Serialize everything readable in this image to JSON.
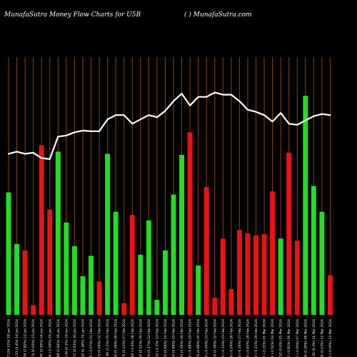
{
  "header": {
    "left_title": "MunafaSutra  Money Flow  Charts for U5B",
    "right_title": "( ) MunafaSutra.com"
  },
  "colors": {
    "background": "#000000",
    "gridline": "#8B4513",
    "up_bar": "#22dd22",
    "down_bar": "#ee1111",
    "price_line": "#ffffff"
  },
  "chart_data": {
    "type": "bar",
    "title": "MunafaSutra  Money Flow  Charts for U5B",
    "xlabel": "",
    "ylabel": "",
    "grid": true,
    "categories": [
      "225.67 (24.11%) 18 Jan 2024",
      "226.53 (3.4%) 19 Jan 2024",
      "225.09 (2.82%) 22 Jan 2024",
      "225.74 (0.92%) 23 Jan 2024",
      "224.40 (2.95%) 24 Jan 2024",
      "224.06 (-0.09%) 25 Jan 2024",
      "227.88 (1.84%) 26 Jan 2024",
      "228.34 (0.2%) 29 Jan 2024",
      "229.72 (0.61%) 30 Jan 2024",
      "230.10 (0.16%) 31 Jan 2024",
      "229.95 (-0.07%) 01 Feb 2024",
      "230.05 (0.04%) 02 Feb 2024",
      "232.80 (1.2%) 05 Feb 2024",
      "233.40 (0.26%) 06 Feb 2024",
      "233.70 (0.13%) 07 Feb 2024",
      "231.60 (-0.9%) 08 Feb 2024",
      "232.80 (0.52%) 09 Feb 2024",
      "233.90 (0.47%) 12 Feb 2024",
      "233.20 (-0.3%) 13 Feb 2024",
      "234.80 (0.69%) 14 Feb 2024",
      "236.90 (0.89%) 15 Feb 2024",
      "238.30 (0.59%) 16 Feb 2024",
      "236.20 (-0.88%) 19 Feb 2024",
      "237.80 (0.68%) 20 Feb 2024",
      "237.70 (-0.04%) 21 Feb 2024",
      "238.60 (0.38%) 22 Feb 2024",
      "238.30 (-0.13%) 23 Feb 2024",
      "238.20 (-0.04%) 26 Feb 2024",
      "237.40 (-0.34%) 27 Feb 2024",
      "235.90 (-0.63%) 28 Feb 2024",
      "235.40 (-0.21%) 29 Feb 2024",
      "234.90 (-0.21%) 01 Mar 2024",
      "233.70 (-0.51%) 04 Mar 2024",
      "235.10 (0.6%) 05 Mar 2024",
      "233.20 (-0.81%) 06 Mar 2024",
      "233.00 (-0.09%) 07 Mar 2024",
      "233.60 (0.26%) 08 Mar 2024",
      "234.30 (0.3%) 11 Mar 2024",
      "234.60 (0.13%) 12 Mar 2024",
      "234.40 (-0.09%) 13 Mar 2024"
    ],
    "bars": [
      {
        "value": 57,
        "dir": "up"
      },
      {
        "value": 33,
        "dir": "up"
      },
      {
        "value": 30,
        "dir": "down"
      },
      {
        "value": 4.5,
        "dir": "down"
      },
      {
        "value": 79,
        "dir": "down"
      },
      {
        "value": 49,
        "dir": "down"
      },
      {
        "value": 76,
        "dir": "up"
      },
      {
        "value": 43,
        "dir": "up"
      },
      {
        "value": 32,
        "dir": "up"
      },
      {
        "value": 18,
        "dir": "up"
      },
      {
        "value": 27.5,
        "dir": "up"
      },
      {
        "value": 15.5,
        "dir": "down"
      },
      {
        "value": 75,
        "dir": "up"
      },
      {
        "value": 48,
        "dir": "up"
      },
      {
        "value": 5.5,
        "dir": "down"
      },
      {
        "value": 46.5,
        "dir": "down"
      },
      {
        "value": 28,
        "dir": "up"
      },
      {
        "value": 44,
        "dir": "up"
      },
      {
        "value": 7,
        "dir": "up"
      },
      {
        "value": 30,
        "dir": "up"
      },
      {
        "value": 56,
        "dir": "up"
      },
      {
        "value": 74.5,
        "dir": "up"
      },
      {
        "value": 85,
        "dir": "down"
      },
      {
        "value": 23,
        "dir": "up"
      },
      {
        "value": 59.5,
        "dir": "down"
      },
      {
        "value": 8,
        "dir": "down"
      },
      {
        "value": 35.5,
        "dir": "down"
      },
      {
        "value": 12,
        "dir": "down"
      },
      {
        "value": 39.5,
        "dir": "down"
      },
      {
        "value": 38,
        "dir": "down"
      },
      {
        "value": 37,
        "dir": "down"
      },
      {
        "value": 37.5,
        "dir": "down"
      },
      {
        "value": 57.5,
        "dir": "down"
      },
      {
        "value": 35.5,
        "dir": "up"
      },
      {
        "value": 75.5,
        "dir": "down"
      },
      {
        "value": 34.5,
        "dir": "down"
      },
      {
        "value": 102,
        "dir": "up"
      },
      {
        "value": 60,
        "dir": "up"
      },
      {
        "value": 48,
        "dir": "up"
      },
      {
        "value": 18.5,
        "dir": "down"
      }
    ],
    "ylim": [
      0,
      120
    ],
    "price_line": {
      "name": "",
      "values": [
        75,
        76,
        75,
        75.5,
        73,
        72.5,
        83,
        83.5,
        85,
        85.8,
        85.5,
        85.5,
        91,
        93,
        93,
        89,
        91,
        93,
        92,
        95,
        99.5,
        103,
        97.5,
        101.5,
        101.5,
        103.5,
        102.5,
        102.5,
        99.5,
        95.5,
        94.5,
        93,
        90,
        94,
        89,
        88.5,
        90.5,
        92.5,
        93.5,
        93
      ],
      "ylim": [
        0,
        120
      ]
    }
  }
}
